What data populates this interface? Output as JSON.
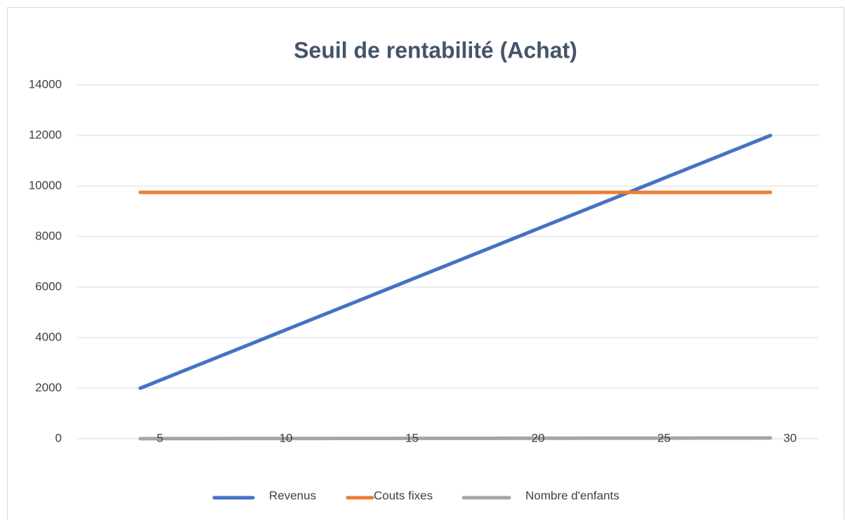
{
  "chart_data": {
    "type": "line",
    "title": "Seuil de rentabilité (Achat)",
    "x": [
      5,
      6,
      7,
      8,
      9,
      10,
      11,
      12,
      13,
      14,
      15,
      16,
      17,
      18,
      19,
      20,
      21,
      22,
      23,
      24,
      25,
      26,
      27,
      28,
      29,
      30
    ],
    "series": [
      {
        "name": "Revenus",
        "color": "#4472c4",
        "values": [
          2000,
          2400,
          2800,
          3200,
          3600,
          4000,
          4400,
          4800,
          5200,
          5600,
          6000,
          6400,
          6800,
          7200,
          7600,
          8000,
          8400,
          8800,
          9200,
          9600,
          10000,
          10400,
          10800,
          11200,
          11600,
          12000
        ]
      },
      {
        "name": "Couts fixes",
        "color": "#ed7d31",
        "values": [
          9750,
          9750,
          9750,
          9750,
          9750,
          9750,
          9750,
          9750,
          9750,
          9750,
          9750,
          9750,
          9750,
          9750,
          9750,
          9750,
          9750,
          9750,
          9750,
          9750,
          9750,
          9750,
          9750,
          9750,
          9750,
          9750
        ]
      },
      {
        "name": "Nombre d'enfants",
        "color": "#a5a5a5",
        "values": [
          5,
          6,
          7,
          8,
          9,
          10,
          11,
          12,
          13,
          14,
          15,
          16,
          17,
          18,
          19,
          20,
          21,
          22,
          23,
          24,
          25,
          26,
          27,
          28,
          29,
          30
        ]
      }
    ],
    "xlim": [
      2.5,
      31.9
    ],
    "xticks": [
      5,
      10,
      15,
      20,
      25,
      30
    ],
    "ylim": [
      0,
      14000
    ],
    "yticks": [
      0,
      2000,
      4000,
      6000,
      8000,
      10000,
      12000,
      14000
    ],
    "grid": true,
    "legend": "bottom"
  }
}
